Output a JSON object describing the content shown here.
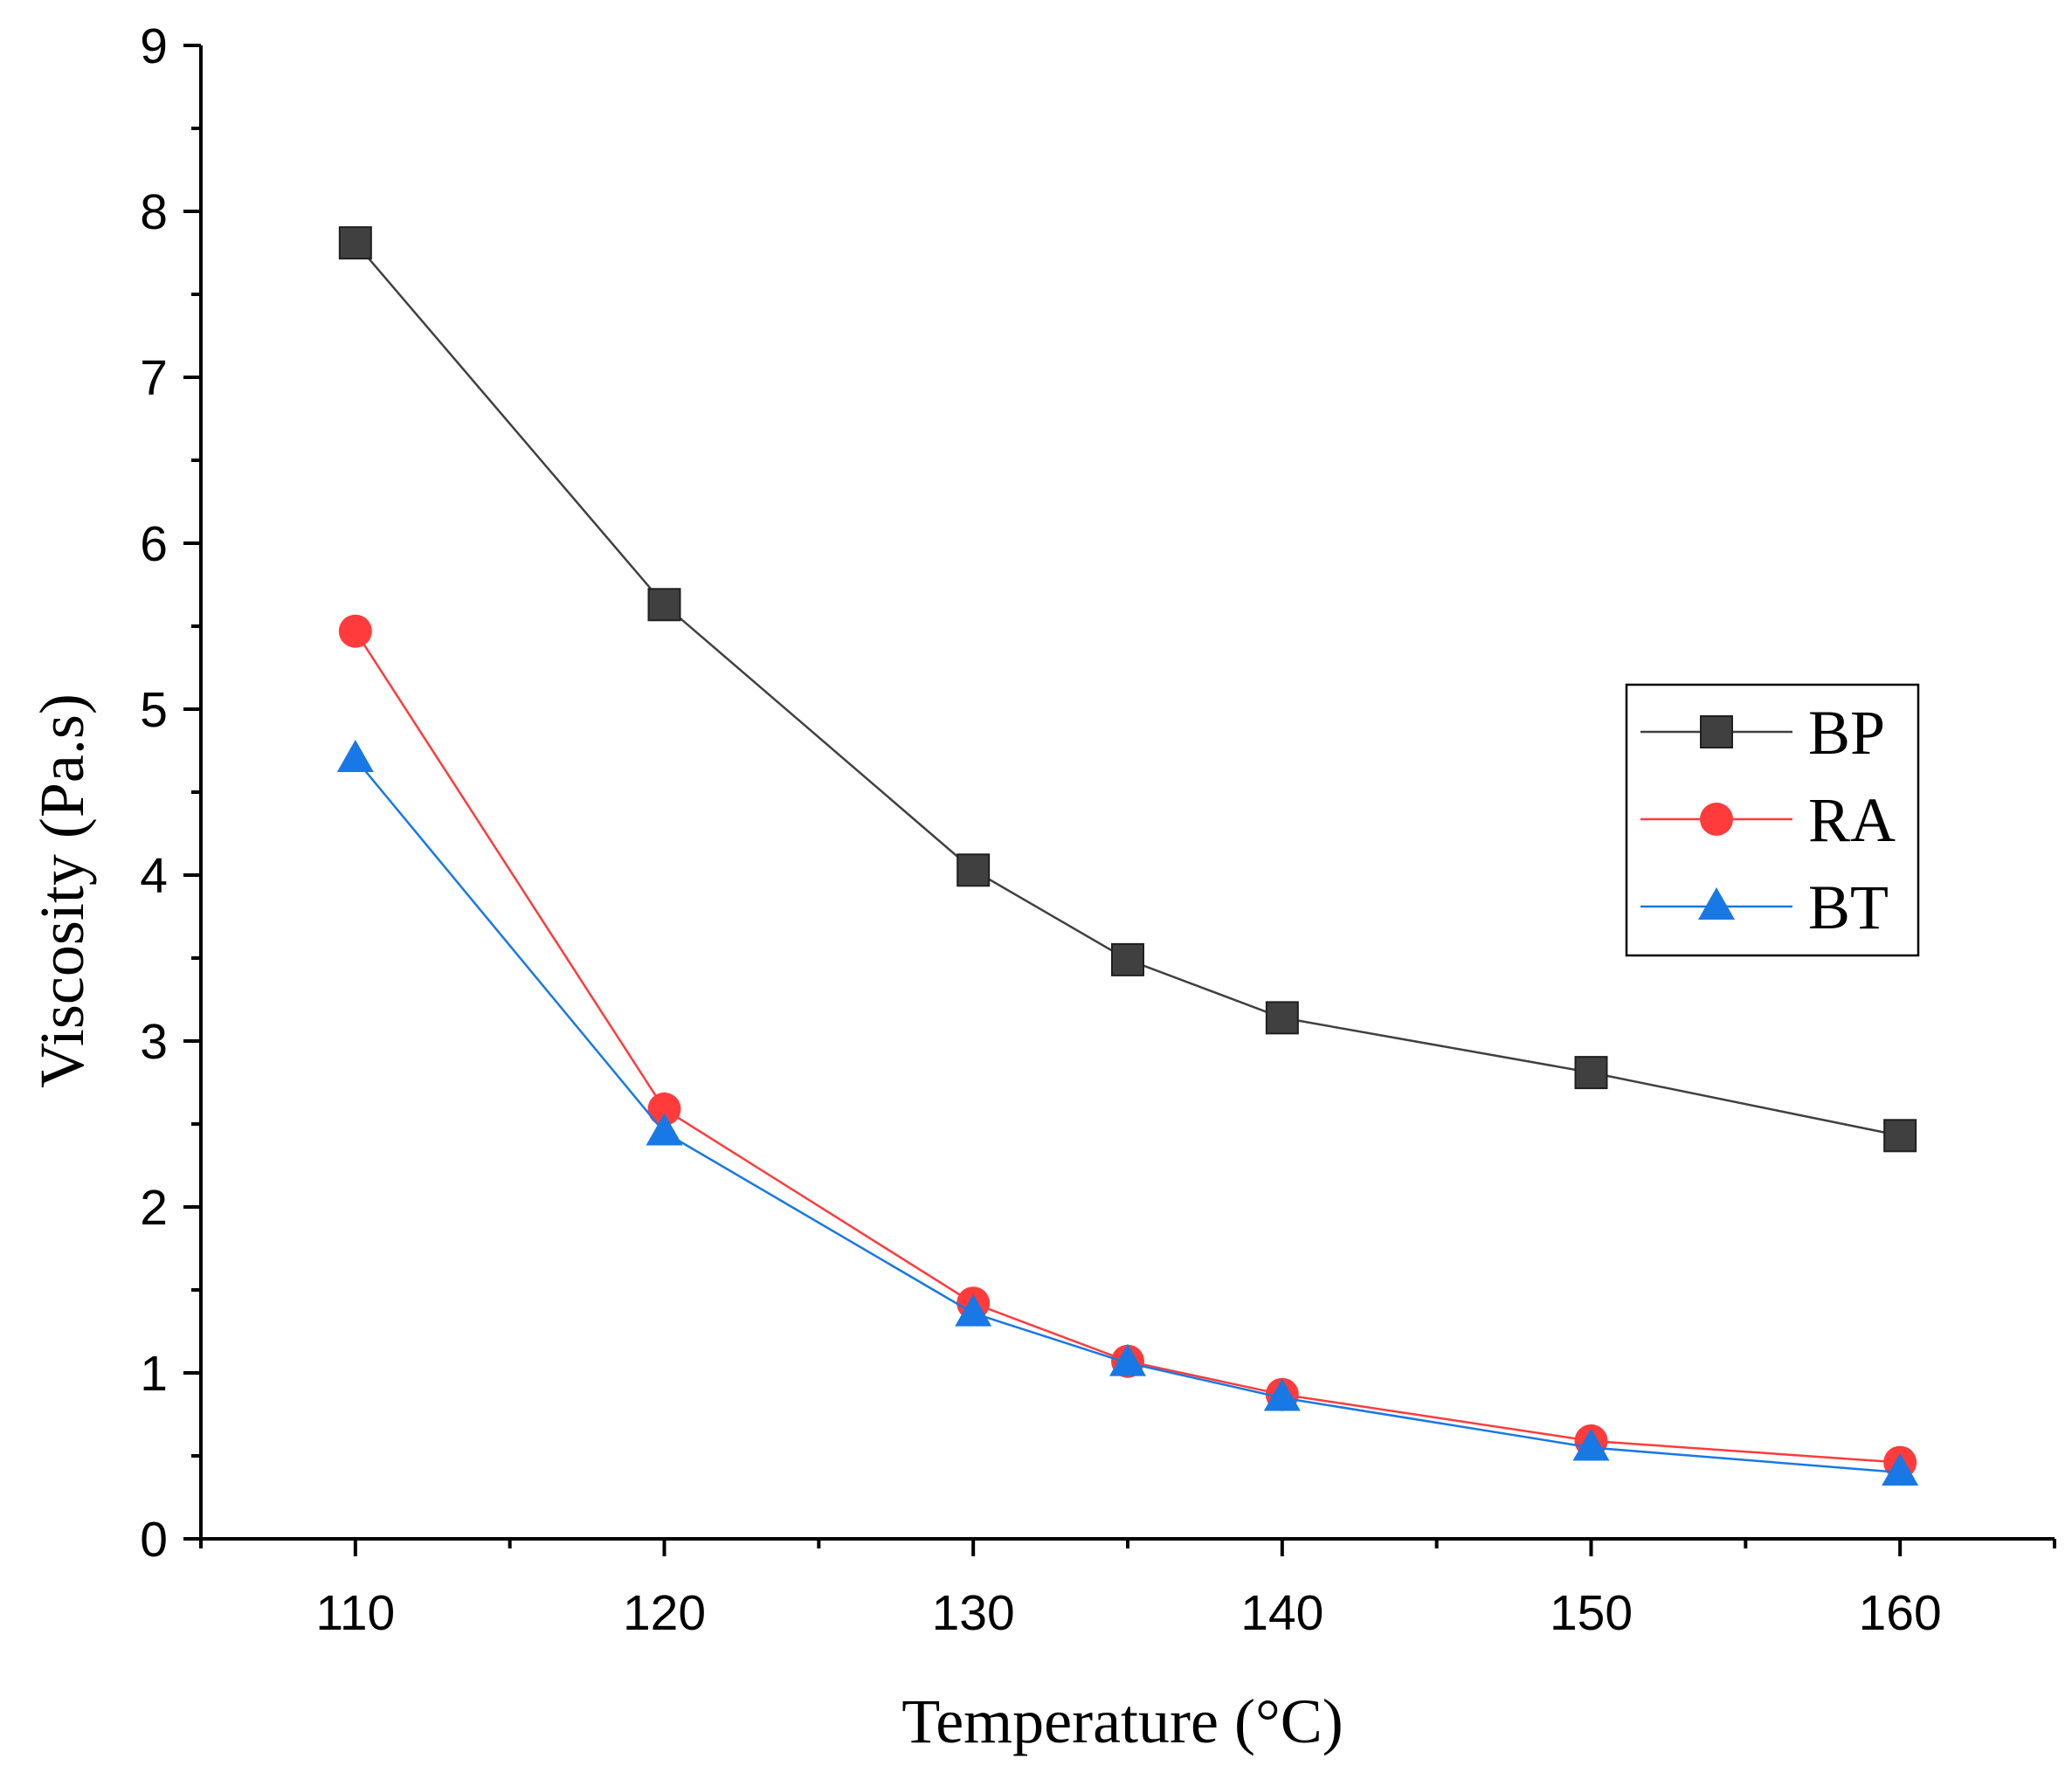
{
  "chart_data": {
    "type": "line",
    "title": "",
    "xlabel": "Temperature (°C)",
    "ylabel": "Viscosity (Pa.s)",
    "xlim": [
      105,
      165
    ],
    "ylim": [
      0,
      9
    ],
    "x_ticks": [
      110,
      120,
      130,
      140,
      150,
      160
    ],
    "y_ticks": [
      0,
      1,
      2,
      3,
      4,
      5,
      6,
      7,
      8,
      9
    ],
    "x": [
      110,
      120,
      130,
      135,
      140,
      150,
      160
    ],
    "grid": false,
    "legend_position": "right",
    "series": [
      {
        "name": "BP",
        "color": "#404040",
        "marker": "square",
        "values": [
          7.81,
          5.63,
          4.03,
          3.49,
          3.14,
          2.81,
          2.43
        ]
      },
      {
        "name": "RA",
        "color": "#ff3b3b",
        "marker": "circle",
        "values": [
          5.47,
          2.59,
          1.42,
          1.07,
          0.87,
          0.59,
          0.46
        ]
      },
      {
        "name": "BT",
        "color": "#1878e6",
        "marker": "triangle",
        "values": [
          4.7,
          2.45,
          1.36,
          1.06,
          0.85,
          0.55,
          0.4
        ]
      }
    ]
  }
}
